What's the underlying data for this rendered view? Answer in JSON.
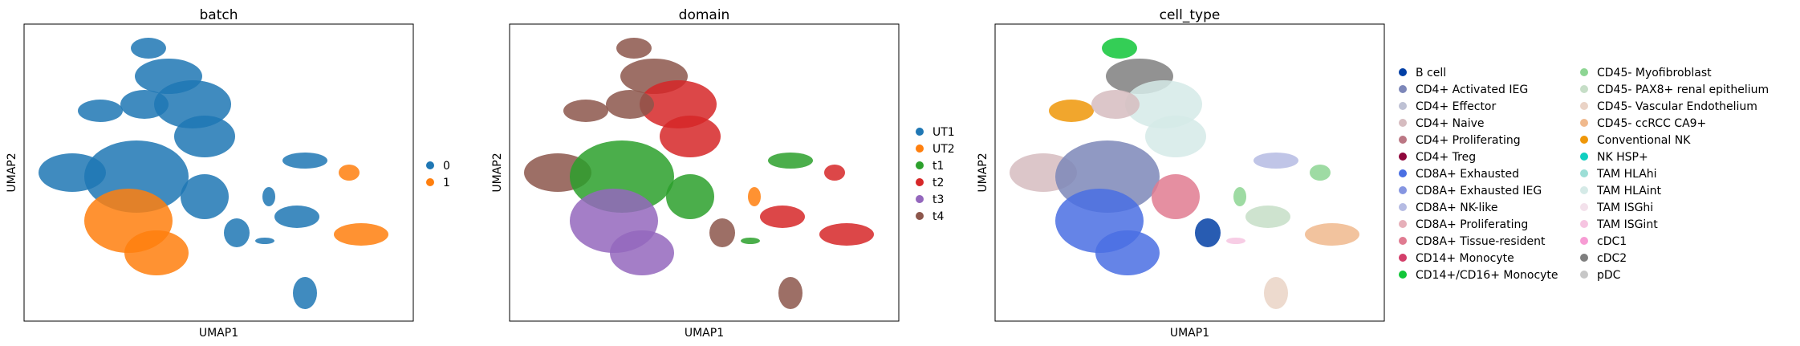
{
  "chart_data": [
    {
      "type": "scatter",
      "title": "batch",
      "xlabel": "UMAP1",
      "ylabel": "UMAP2",
      "grid": false,
      "legend": "right",
      "series": [
        {
          "name": "0",
          "color": "#1f77b4"
        },
        {
          "name": "1",
          "color": "#ff7f0e"
        }
      ]
    },
    {
      "type": "scatter",
      "title": "domain",
      "xlabel": "UMAP1",
      "ylabel": "UMAP2",
      "grid": false,
      "legend": "right",
      "series": [
        {
          "name": "UT1",
          "color": "#1f77b4"
        },
        {
          "name": "UT2",
          "color": "#ff7f0e"
        },
        {
          "name": "t1",
          "color": "#2ca02c"
        },
        {
          "name": "t2",
          "color": "#d62728"
        },
        {
          "name": "t3",
          "color": "#9467bd"
        },
        {
          "name": "t4",
          "color": "#8c564b"
        }
      ]
    },
    {
      "type": "scatter",
      "title": "cell_type",
      "xlabel": "UMAP1",
      "ylabel": "UMAP2",
      "grid": false,
      "legend": "right",
      "series": [
        {
          "name": "B cell",
          "color": "#023fa5"
        },
        {
          "name": "CD4+ Activated IEG",
          "color": "#7d87b9"
        },
        {
          "name": "CD4+ Effector",
          "color": "#bec1d4"
        },
        {
          "name": "CD4+ Naive",
          "color": "#d6bcc0"
        },
        {
          "name": "CD4+ Proliferating",
          "color": "#bb7784"
        },
        {
          "name": "CD4+ Treg",
          "color": "#8e063b"
        },
        {
          "name": "CD8A+ Exhausted",
          "color": "#4a6fe3"
        },
        {
          "name": "CD8A+ Exhausted IEG",
          "color": "#8595e1"
        },
        {
          "name": "CD8A+ NK-like",
          "color": "#b5bbe3"
        },
        {
          "name": "CD8A+ Proliferating",
          "color": "#e6afb9"
        },
        {
          "name": "CD8A+ Tissue-resident",
          "color": "#e07b91"
        },
        {
          "name": "CD14+ Monocyte",
          "color": "#d33f6a"
        },
        {
          "name": "CD14+/CD16+ Monocyte",
          "color": "#11c638"
        },
        {
          "name": "CD45- Myofibroblast",
          "color": "#8dd593"
        },
        {
          "name": "CD45- PAX8+ renal epithelium",
          "color": "#c6dec7"
        },
        {
          "name": "CD45- Vascular Endothelium",
          "color": "#ead3c6"
        },
        {
          "name": "CD45- ccRCC CA9+",
          "color": "#f0b98d"
        },
        {
          "name": "Conventional NK",
          "color": "#ef9708"
        },
        {
          "name": "NK HSP+",
          "color": "#0fcfc0"
        },
        {
          "name": "TAM HLAhi",
          "color": "#9cded6"
        },
        {
          "name": "TAM HLAint",
          "color": "#d5eae7"
        },
        {
          "name": "TAM ISGhi",
          "color": "#f3e1eb"
        },
        {
          "name": "TAM ISGint",
          "color": "#f6c4e1"
        },
        {
          "name": "cDC1",
          "color": "#f79cd4"
        },
        {
          "name": "cDC2",
          "color": "#7f7f7f"
        },
        {
          "name": "pDC",
          "color": "#c7c7c7"
        }
      ]
    }
  ]
}
